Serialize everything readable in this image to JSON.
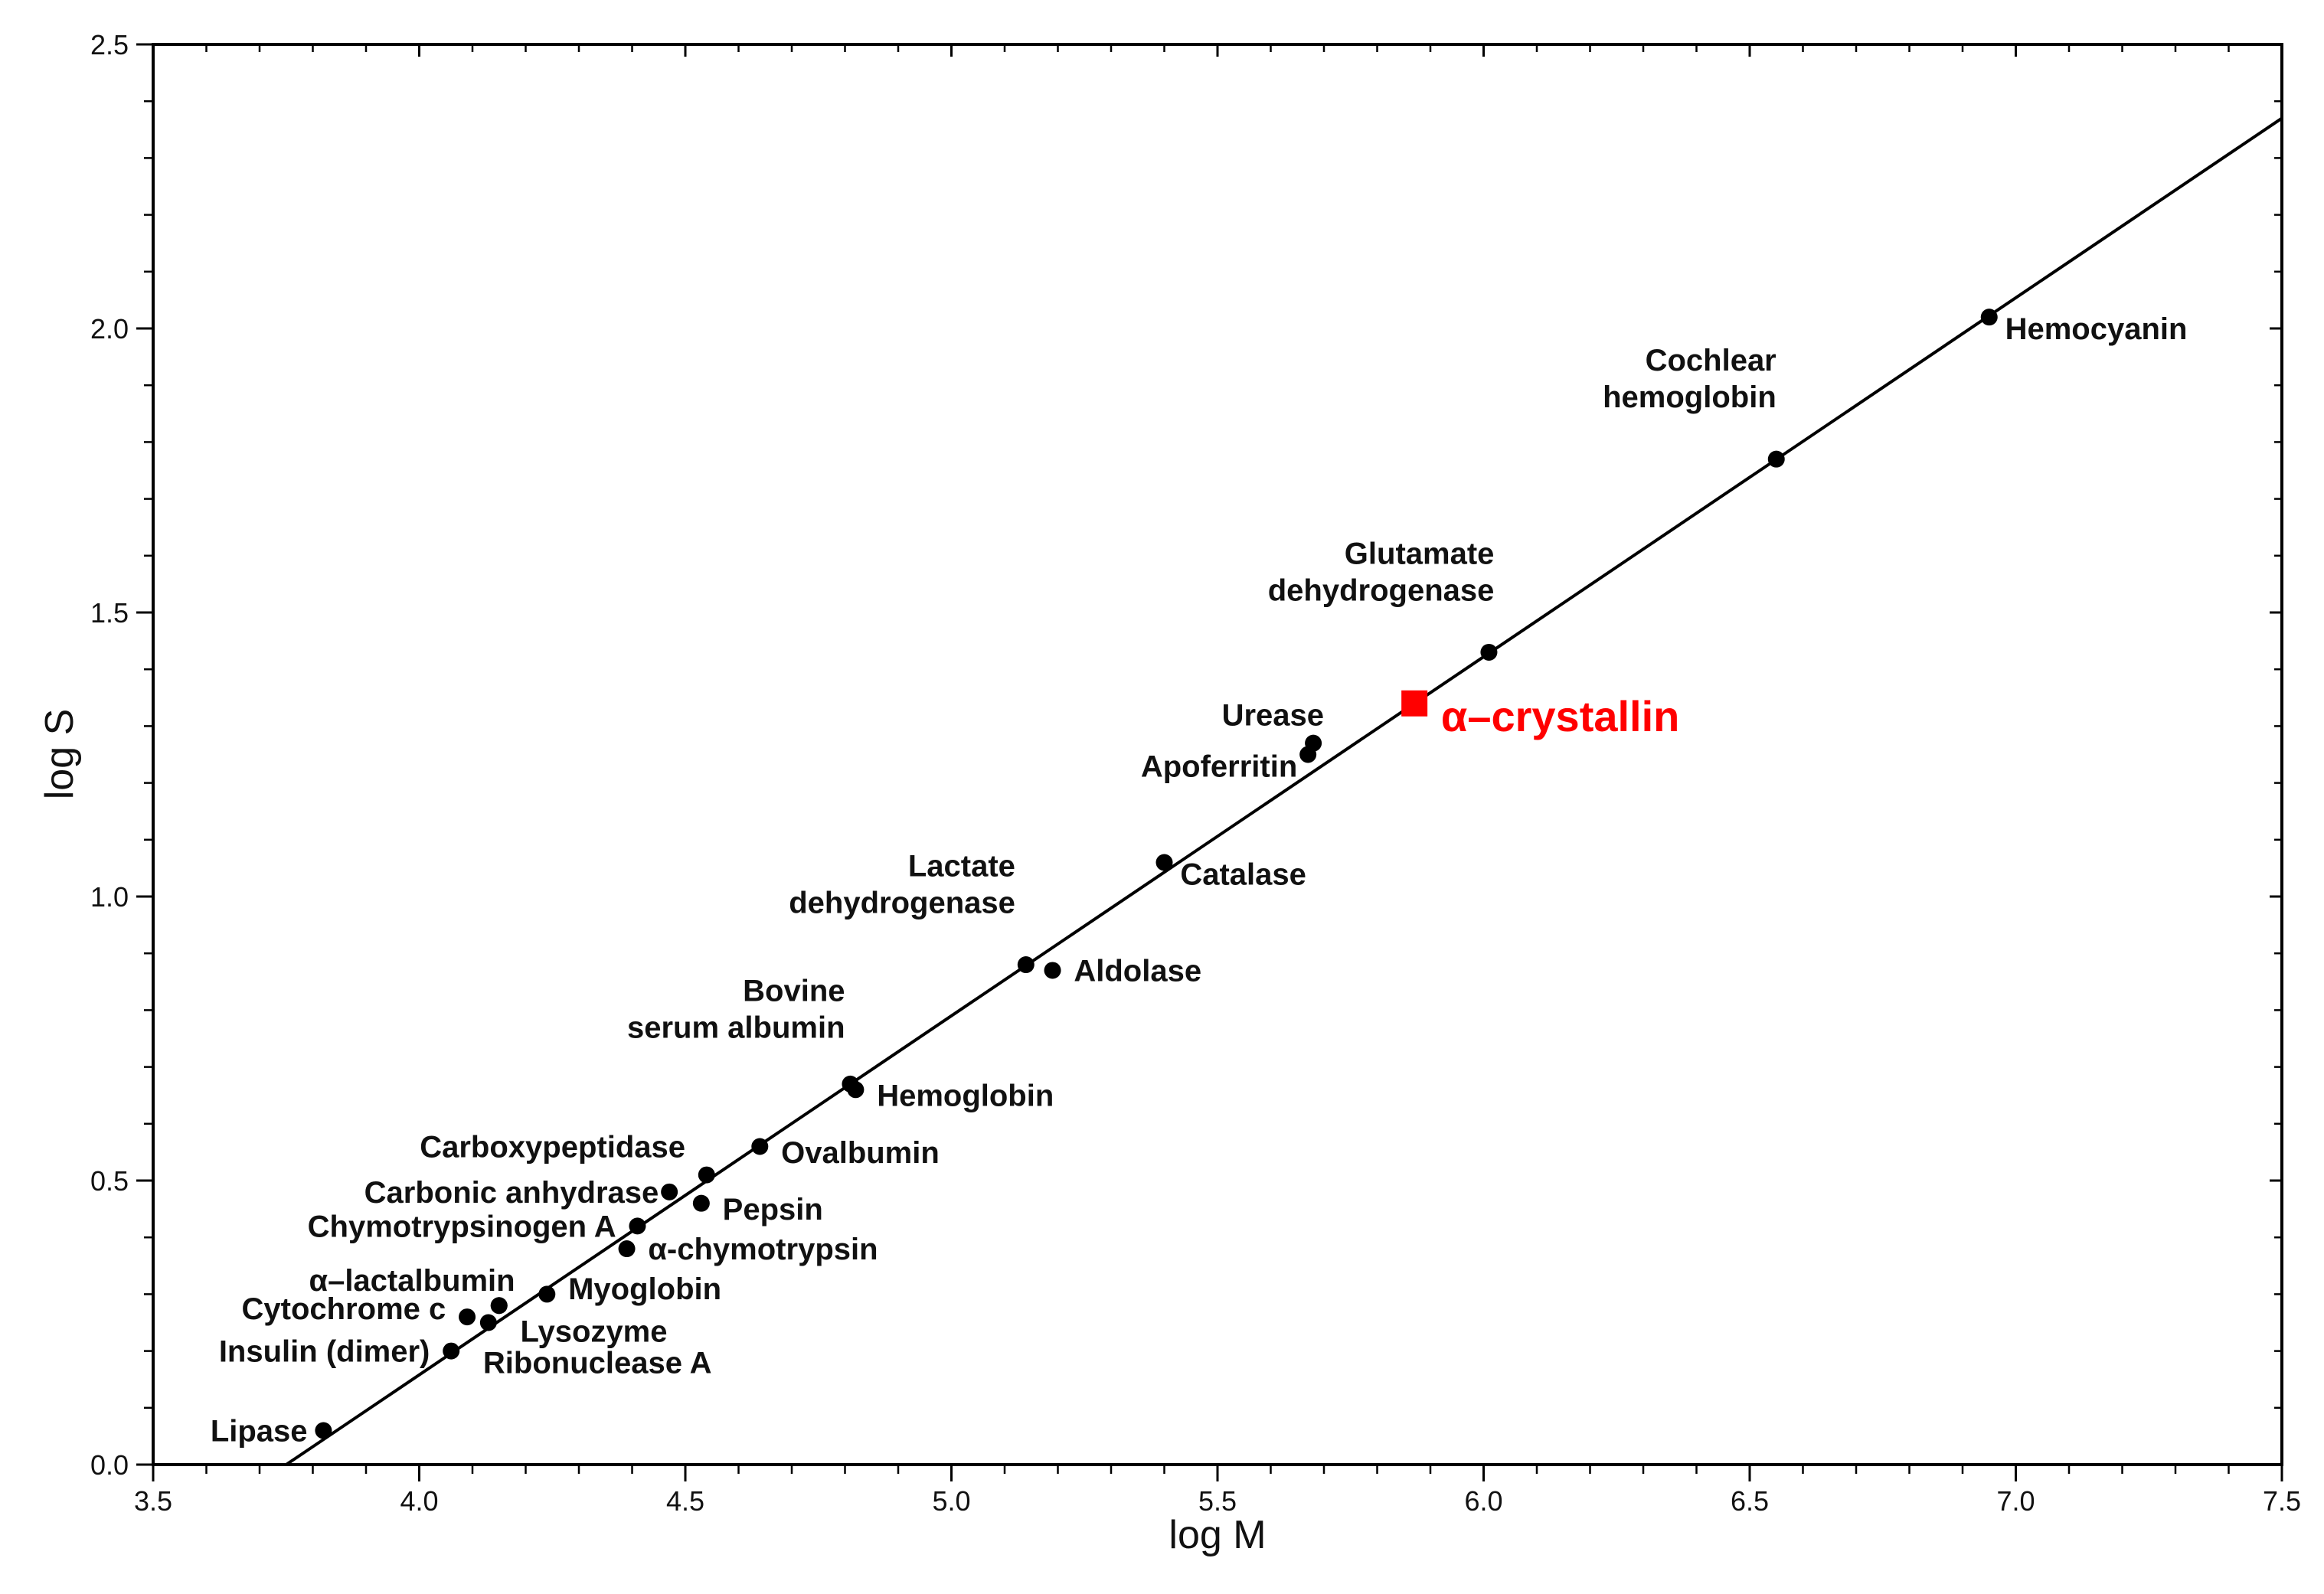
{
  "chart_data": {
    "type": "scatter",
    "title": "",
    "xlabel": "log M",
    "ylabel": "log S",
    "xlim": [
      3.5,
      7.5
    ],
    "ylim": [
      0.0,
      2.5
    ],
    "x_ticks": [
      "3.5",
      "4.0",
      "4.5",
      "5.0",
      "5.5",
      "6.0",
      "6.5",
      "7.0",
      "7.5"
    ],
    "y_ticks": [
      "0.0",
      "0.5",
      "1.0",
      "1.5",
      "2.0",
      "2.5"
    ],
    "grid": false,
    "fit_line": {
      "x": [
        3.75,
        7.5
      ],
      "y": [
        0.0,
        2.37
      ]
    },
    "series": [
      {
        "color": "#000000",
        "points": [
          {
            "label": [
              "Lipase"
            ],
            "x": 3.82,
            "y": 0.06,
            "label_anchor": "end",
            "label_dx": -0.03,
            "label_dy": 0.0
          },
          {
            "label": [
              "Insulin (dimer)"
            ],
            "x": 4.06,
            "y": 0.2,
            "label_anchor": "end",
            "label_dx": -0.04,
            "label_dy": 0.0
          },
          {
            "label": [
              "Cytochrome c"
            ],
            "x": 4.09,
            "y": 0.26,
            "label_anchor": "end",
            "label_dx": -0.04,
            "label_dy": 0.015
          },
          {
            "label": [
              "Ribonuclease A"
            ],
            "x": 4.13,
            "y": 0.25,
            "label_anchor": "start",
            "label_dx": -0.01,
            "label_dy": -0.07
          },
          {
            "label": [
              "α–lactalbumin"
            ],
            "x": 4.15,
            "y": 0.28,
            "label_anchor": "end",
            "label_dx": 0.03,
            "label_dy": 0.045
          },
          {
            "label": [
              "Lysozyme"
            ],
            "x": 4.15,
            "y": 0.28,
            "label_anchor": "start",
            "label_dx": 0.04,
            "label_dy": -0.045
          },
          {
            "label": [
              "Myoglobin"
            ],
            "x": 4.24,
            "y": 0.3,
            "label_anchor": "start",
            "label_dx": 0.04,
            "label_dy": 0.01
          },
          {
            "label": [
              "α-chymotrypsin"
            ],
            "x": 4.39,
            "y": 0.38,
            "label_anchor": "start",
            "label_dx": 0.04,
            "label_dy": 0.0
          },
          {
            "label": [
              "Chymotrypsinogen A"
            ],
            "x": 4.41,
            "y": 0.42,
            "label_anchor": "end",
            "label_dx": -0.04,
            "label_dy": 0.0
          },
          {
            "label": [
              "Carbonic anhydrase"
            ],
            "x": 4.47,
            "y": 0.48,
            "label_anchor": "end",
            "label_dx": -0.02,
            "label_dy": 0.0
          },
          {
            "label": [
              "Pepsin"
            ],
            "x": 4.53,
            "y": 0.46,
            "label_anchor": "start",
            "label_dx": 0.04,
            "label_dy": -0.01
          },
          {
            "label": [
              "Carboxypeptidase"
            ],
            "x": 4.54,
            "y": 0.51,
            "label_anchor": "end",
            "label_dx": -0.04,
            "label_dy": 0.05
          },
          {
            "label": [
              "Ovalbumin"
            ],
            "x": 4.64,
            "y": 0.56,
            "label_anchor": "start",
            "label_dx": 0.04,
            "label_dy": -0.01
          },
          {
            "label": [
              "Bovine",
              "serum albumin"
            ],
            "x": 4.81,
            "y": 0.67,
            "label_anchor": "end",
            "label_dx": -0.01,
            "label_dy": 0.1
          },
          {
            "label": [
              "Hemoglobin"
            ],
            "x": 4.82,
            "y": 0.66,
            "label_anchor": "start",
            "label_dx": 0.04,
            "label_dy": -0.01
          },
          {
            "label": [
              "Lactate",
              "dehydrogenase"
            ],
            "x": 5.14,
            "y": 0.88,
            "label_anchor": "end",
            "label_dx": -0.02,
            "label_dy": 0.11
          },
          {
            "label": [
              "Aldolase"
            ],
            "x": 5.19,
            "y": 0.87,
            "label_anchor": "start",
            "label_dx": 0.04,
            "label_dy": 0.0
          },
          {
            "label": [
              "Catalase"
            ],
            "x": 5.4,
            "y": 1.06,
            "label_anchor": "start",
            "label_dx": 0.03,
            "label_dy": -0.02
          },
          {
            "label": [
              "Apoferritin"
            ],
            "x": 5.67,
            "y": 1.25,
            "label_anchor": "end",
            "label_dx": -0.02,
            "label_dy": -0.02
          },
          {
            "label": [
              "Urease"
            ],
            "x": 5.68,
            "y": 1.27,
            "label_anchor": "end",
            "label_dx": 0.02,
            "label_dy": 0.05
          },
          {
            "label": [
              "Glutamate",
              "dehydrogenase"
            ],
            "x": 6.01,
            "y": 1.43,
            "label_anchor": "end",
            "label_dx": 0.01,
            "label_dy": 0.11
          },
          {
            "label": [
              "Cochlear",
              "hemoglobin"
            ],
            "x": 6.55,
            "y": 1.77,
            "label_anchor": "end",
            "label_dx": 0.0,
            "label_dy": 0.11
          },
          {
            "label": [
              "Hemocyanin"
            ],
            "x": 6.95,
            "y": 2.02,
            "label_anchor": "start",
            "label_dx": 0.03,
            "label_dy": -0.02
          }
        ]
      },
      {
        "name": "α–crystallin",
        "color": "#ff0000",
        "marker": "square",
        "points": [
          {
            "label": [
              "α–crystallin"
            ],
            "x": 5.87,
            "y": 1.34,
            "label_anchor": "start",
            "label_dx": 0.05,
            "label_dy": -0.03
          }
        ]
      }
    ]
  }
}
